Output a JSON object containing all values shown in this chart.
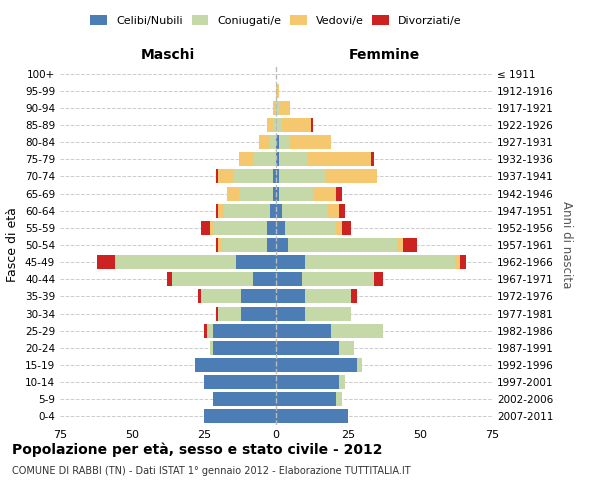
{
  "age_groups": [
    "0-4",
    "5-9",
    "10-14",
    "15-19",
    "20-24",
    "25-29",
    "30-34",
    "35-39",
    "40-44",
    "45-49",
    "50-54",
    "55-59",
    "60-64",
    "65-69",
    "70-74",
    "75-79",
    "80-84",
    "85-89",
    "90-94",
    "95-99",
    "100+"
  ],
  "birth_years": [
    "2007-2011",
    "2002-2006",
    "1997-2001",
    "1992-1996",
    "1987-1991",
    "1982-1986",
    "1977-1981",
    "1972-1976",
    "1967-1971",
    "1962-1966",
    "1957-1961",
    "1952-1956",
    "1947-1951",
    "1942-1946",
    "1937-1941",
    "1932-1936",
    "1927-1931",
    "1922-1926",
    "1917-1921",
    "1912-1916",
    "≤ 1911"
  ],
  "male": {
    "celibi": [
      25,
      22,
      25,
      28,
      22,
      22,
      12,
      12,
      8,
      14,
      3,
      3,
      2,
      1,
      1,
      0,
      0,
      0,
      0,
      0,
      0
    ],
    "coniugati": [
      0,
      0,
      0,
      0,
      1,
      2,
      8,
      14,
      28,
      42,
      16,
      19,
      16,
      12,
      14,
      8,
      2,
      1,
      0,
      0,
      0
    ],
    "vedovi": [
      0,
      0,
      0,
      0,
      0,
      0,
      0,
      0,
      0,
      0,
      1,
      1,
      2,
      4,
      5,
      5,
      4,
      2,
      1,
      0,
      0
    ],
    "divorziati": [
      0,
      0,
      0,
      0,
      0,
      1,
      1,
      1,
      2,
      6,
      1,
      3,
      1,
      0,
      1,
      0,
      0,
      0,
      0,
      0,
      0
    ]
  },
  "female": {
    "nubili": [
      25,
      21,
      22,
      28,
      22,
      19,
      10,
      10,
      9,
      10,
      4,
      3,
      2,
      1,
      1,
      1,
      1,
      0,
      0,
      0,
      0
    ],
    "coniugate": [
      0,
      2,
      2,
      2,
      5,
      18,
      16,
      16,
      25,
      52,
      38,
      18,
      16,
      12,
      16,
      10,
      4,
      2,
      1,
      0,
      0
    ],
    "vedove": [
      0,
      0,
      0,
      0,
      0,
      0,
      0,
      0,
      0,
      2,
      2,
      2,
      4,
      8,
      18,
      22,
      14,
      10,
      4,
      1,
      0
    ],
    "divorziate": [
      0,
      0,
      0,
      0,
      0,
      0,
      0,
      2,
      3,
      2,
      5,
      3,
      2,
      2,
      0,
      1,
      0,
      1,
      0,
      0,
      0
    ]
  },
  "colors": {
    "celibi_nubili": "#4d7db5",
    "coniugati": "#c5d9a8",
    "vedovi": "#f5c76e",
    "divorziati": "#cc2222"
  },
  "xlim": 75,
  "title": "Popolazione per età, sesso e stato civile - 2012",
  "subtitle": "COMUNE DI RABBI (TN) - Dati ISTAT 1° gennaio 2012 - Elaborazione TUTTITALIA.IT",
  "ylabel_left": "Fasce di età",
  "ylabel_right": "Anni di nascita",
  "xlabel_left": "Maschi",
  "xlabel_right": "Femmine"
}
